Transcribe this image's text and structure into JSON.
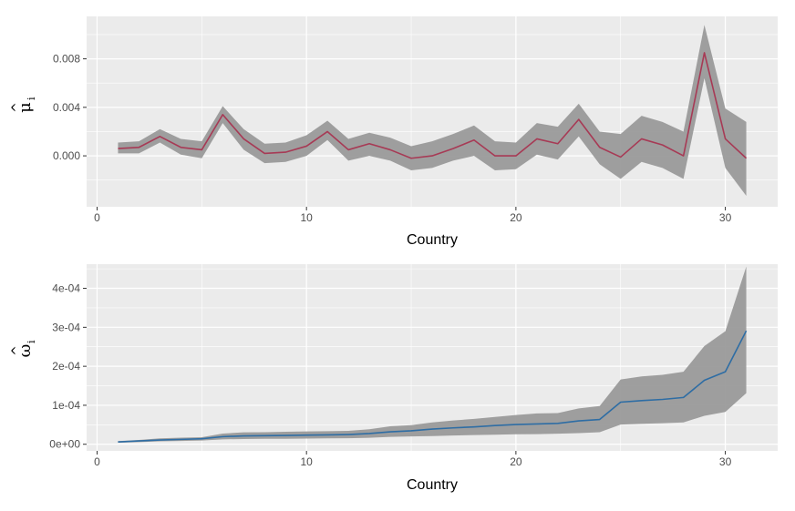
{
  "chart_data": [
    {
      "type": "line",
      "xlabel": "Country",
      "ylabel": {
        "hat": "^",
        "symbol": "μ",
        "subscript": "i"
      },
      "x": [
        1,
        2,
        3,
        4,
        5,
        6,
        7,
        8,
        9,
        10,
        11,
        12,
        13,
        14,
        15,
        16,
        17,
        18,
        19,
        20,
        21,
        22,
        23,
        24,
        25,
        26,
        27,
        28,
        29,
        30,
        31
      ],
      "xlim": [
        -0.5,
        32.5
      ],
      "xticks": [
        0,
        10,
        20,
        30
      ],
      "xtick_labels": [
        "0",
        "10",
        "20",
        "30"
      ],
      "ylim": [
        -0.0042,
        0.0115
      ],
      "yticks": [
        0.0,
        0.004,
        0.008
      ],
      "ytick_labels": [
        "0.000",
        "0.004",
        "0.008"
      ],
      "grid": true,
      "colors": {
        "line": "#A73A55",
        "band": "#9A9A9A",
        "panel": "#EBEBEB",
        "grid": "#FFFFFF"
      },
      "series": [
        {
          "values": [
            0.0006,
            0.0007,
            0.0016,
            0.0007,
            0.0005,
            0.0034,
            0.0014,
            0.0002,
            0.0003,
            0.0008,
            0.002,
            0.0005,
            0.001,
            0.0005,
            -0.0002,
            0.0,
            0.0006,
            0.0013,
            0.0,
            0.0,
            0.0014,
            0.001,
            0.003,
            0.0007,
            -0.0001,
            0.0014,
            0.0009,
            0.0,
            0.0085,
            0.0014,
            -0.0002
          ],
          "lower": [
            0.0002,
            0.0002,
            0.0011,
            0.0001,
            -0.0002,
            0.0027,
            0.0005,
            -0.0006,
            -0.0005,
            0.0,
            0.0013,
            -0.0004,
            0.0,
            -0.0004,
            -0.0012,
            -0.001,
            -0.0004,
            0.0,
            -0.0012,
            -0.0011,
            0.0001,
            -0.0003,
            0.0016,
            -0.0007,
            -0.0019,
            -0.0005,
            -0.001,
            -0.0019,
            0.0064,
            -0.001,
            -0.0033
          ],
          "upper": [
            0.0011,
            0.0012,
            0.0022,
            0.0014,
            0.0012,
            0.0041,
            0.0022,
            0.001,
            0.0011,
            0.0017,
            0.0029,
            0.0014,
            0.0019,
            0.0015,
            0.0008,
            0.0012,
            0.0018,
            0.0025,
            0.0012,
            0.0011,
            0.0027,
            0.0024,
            0.0043,
            0.002,
            0.0018,
            0.0033,
            0.0028,
            0.002,
            0.0108,
            0.0039,
            0.0028
          ]
        }
      ]
    },
    {
      "type": "line",
      "xlabel": "Country",
      "ylabel": {
        "hat": "^",
        "symbol": "ω",
        "subscript": "i"
      },
      "x": [
        1,
        2,
        3,
        4,
        5,
        6,
        7,
        8,
        9,
        10,
        11,
        12,
        13,
        14,
        15,
        16,
        17,
        18,
        19,
        20,
        21,
        22,
        23,
        24,
        25,
        26,
        27,
        28,
        29,
        30,
        31
      ],
      "xlim": [
        -0.5,
        32.5
      ],
      "xticks": [
        0,
        10,
        20,
        30
      ],
      "xtick_labels": [
        "0",
        "10",
        "20",
        "30"
      ],
      "ylim": [
        -1.7e-05,
        0.000462
      ],
      "yticks": [
        0.0,
        0.0001,
        0.0002,
        0.0003,
        0.0004
      ],
      "ytick_labels": [
        "0e+00",
        "1e-04",
        "2e-04",
        "3e-04",
        "4e-04"
      ],
      "grid": true,
      "colors": {
        "line": "#2E6DA4",
        "band": "#9A9A9A",
        "panel": "#EBEBEB",
        "grid": "#FFFFFF"
      },
      "series": [
        {
          "values": [
            6e-06,
            8.5e-06,
            1.1e-05,
            1.25e-05,
            1.4e-05,
            1.95e-05,
            2.15e-05,
            2.2e-05,
            2.25e-05,
            2.35e-05,
            2.4e-05,
            2.5e-05,
            2.75e-05,
            3.2e-05,
            3.45e-05,
            3.9e-05,
            4.2e-05,
            4.45e-05,
            4.8e-05,
            5.05e-05,
            5.2e-05,
            5.35e-05,
            6e-05,
            6.35e-05,
            0.000108,
            0.000112,
            0.000115,
            0.00012,
            0.000164,
            0.000186,
            0.000291
          ],
          "lower": [
            4e-06,
            5.5e-06,
            7.5e-06,
            8.5e-06,
            9.5e-06,
            1.25e-05,
            1.35e-05,
            1.4e-05,
            1.4e-05,
            1.45e-05,
            1.5e-05,
            1.55e-05,
            1.65e-05,
            1.9e-05,
            2e-05,
            2.1e-05,
            2.25e-05,
            2.35e-05,
            2.45e-05,
            2.55e-05,
            2.6e-05,
            2.7e-05,
            2.85e-05,
            3.1e-05,
            5.05e-05,
            5.25e-05,
            5.4e-05,
            5.6e-05,
            7.3e-05,
            8.3e-05,
            0.000131
          ],
          "upper": [
            8e-06,
            1.1e-05,
            1.5e-05,
            1.7e-05,
            1.8e-05,
            2.75e-05,
            3.05e-05,
            3.1e-05,
            3.2e-05,
            3.3e-05,
            3.35e-05,
            3.45e-05,
            3.85e-05,
            4.6e-05,
            4.9e-05,
            5.6e-05,
            6.1e-05,
            6.5e-05,
            7e-05,
            7.5e-05,
            7.9e-05,
            8e-05,
            9.2e-05,
            9.8e-05,
            0.000166,
            0.000174,
            0.000178,
            0.000186,
            0.000252,
            0.00029,
            0.000456
          ]
        }
      ]
    }
  ]
}
